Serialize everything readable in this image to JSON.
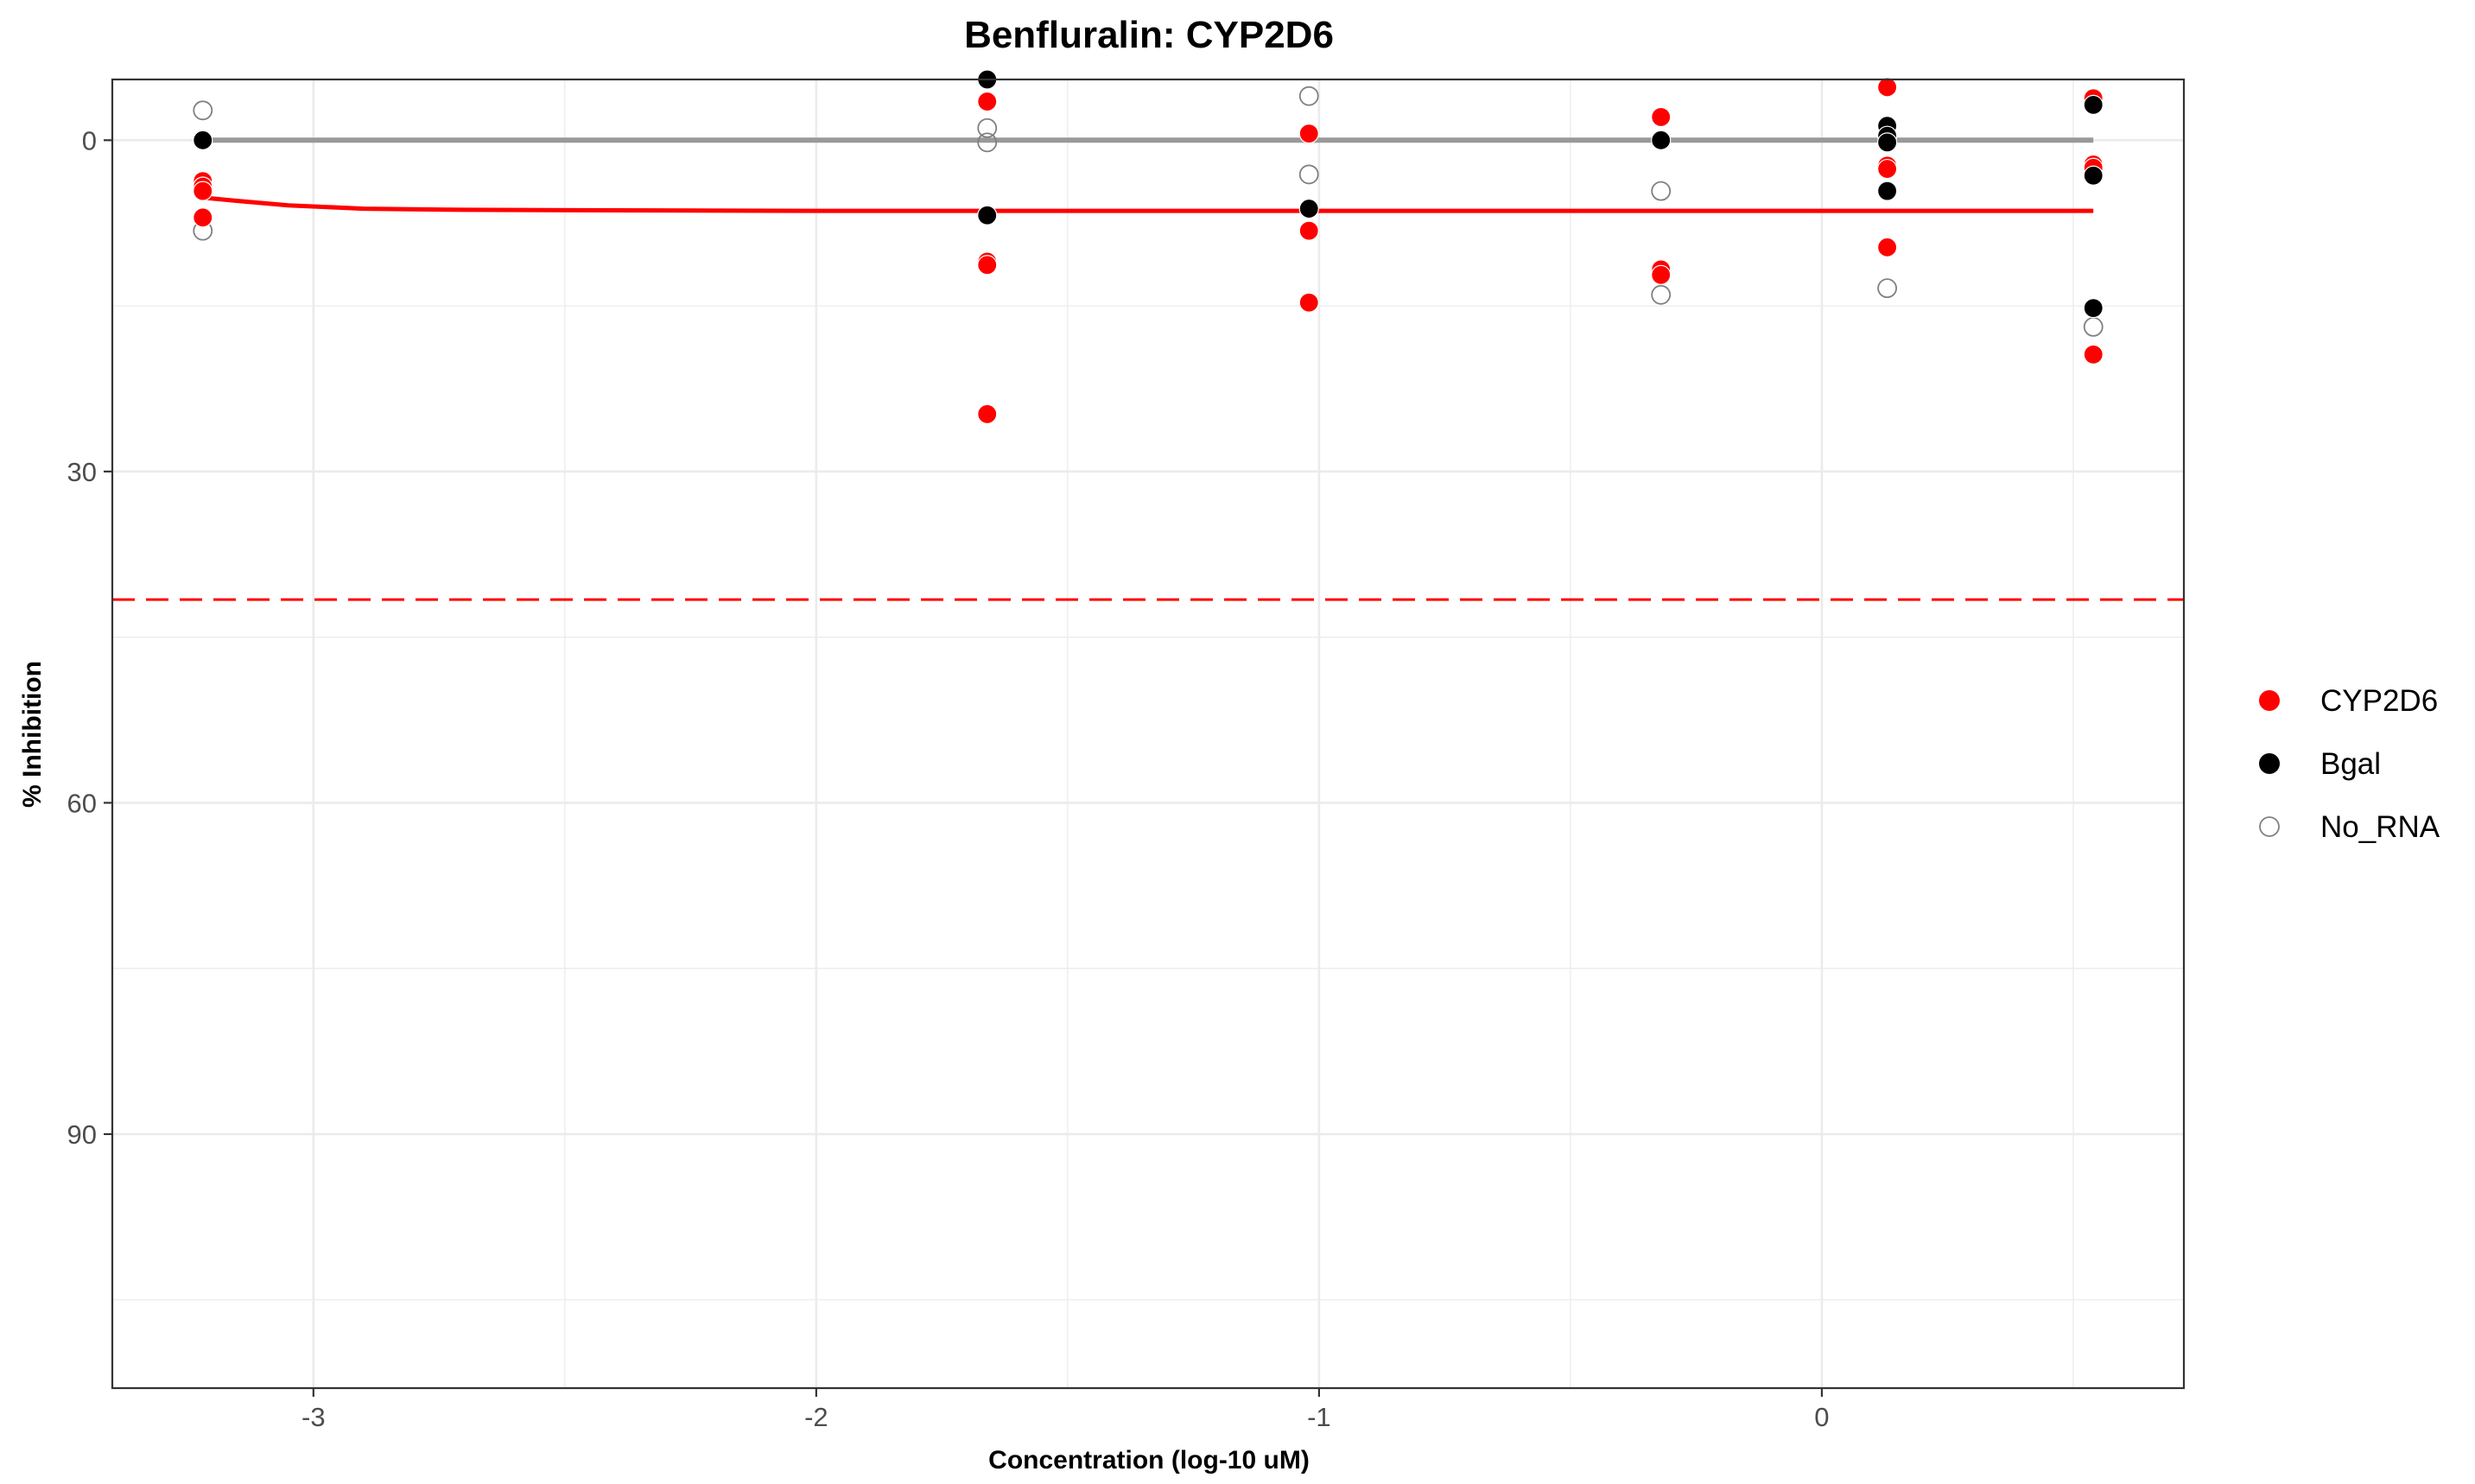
{
  "chart_data": {
    "type": "scatter",
    "title": "Benfluralin: CYP2D6",
    "xlabel": "Concentration (log-10 uM)",
    "ylabel": "% Inhibition",
    "xlim": [
      -3.4,
      0.72
    ],
    "ylim": [
      113,
      -5.5
    ],
    "y_reversed": true,
    "x_ticks": [
      -3,
      -2,
      -1,
      0
    ],
    "x_tick_labels": [
      "-3",
      "-2",
      "-1",
      "0"
    ],
    "y_ticks": [
      0,
      30,
      60,
      90
    ],
    "y_tick_labels": [
      "0",
      "30",
      "60",
      "90"
    ],
    "grid": true,
    "legend_position": "right",
    "colors": {
      "CYP2D6": "#ff0000",
      "Bgal": "#000000",
      "No_RNA": "#808080",
      "bgal_fit": "#999999"
    },
    "series": [
      {
        "name": "CYP2D6",
        "marker": "filled-circle",
        "color": "#ff0000",
        "points": [
          {
            "x": -3.22,
            "y": 3.7
          },
          {
            "x": -3.22,
            "y": 4.2
          },
          {
            "x": -3.22,
            "y": 4.6
          },
          {
            "x": -3.22,
            "y": 7.0
          },
          {
            "x": -1.66,
            "y": -3.5
          },
          {
            "x": -1.66,
            "y": 11.0
          },
          {
            "x": -1.66,
            "y": 11.3
          },
          {
            "x": -1.66,
            "y": 24.8
          },
          {
            "x": -1.02,
            "y": -0.6
          },
          {
            "x": -1.02,
            "y": 8.2
          },
          {
            "x": -1.02,
            "y": 14.7
          },
          {
            "x": -0.32,
            "y": -2.1
          },
          {
            "x": -0.32,
            "y": 11.7
          },
          {
            "x": -0.32,
            "y": 12.2
          },
          {
            "x": 0.13,
            "y": -4.8
          },
          {
            "x": 0.13,
            "y": 2.3
          },
          {
            "x": 0.13,
            "y": 2.6
          },
          {
            "x": 0.13,
            "y": 9.7
          },
          {
            "x": 0.54,
            "y": -3.8
          },
          {
            "x": 0.54,
            "y": 2.2
          },
          {
            "x": 0.54,
            "y": 2.5
          },
          {
            "x": 0.54,
            "y": 19.4
          }
        ]
      },
      {
        "name": "Bgal",
        "marker": "filled-circle",
        "color": "#000000",
        "points": [
          {
            "x": -3.22,
            "y": 0.0
          },
          {
            "x": -1.66,
            "y": -5.5
          },
          {
            "x": -1.66,
            "y": 6.8
          },
          {
            "x": -1.02,
            "y": 6.2
          },
          {
            "x": -0.32,
            "y": 0.0
          },
          {
            "x": 0.13,
            "y": -1.3
          },
          {
            "x": 0.13,
            "y": -0.4
          },
          {
            "x": 0.13,
            "y": 0.2
          },
          {
            "x": 0.13,
            "y": 4.6
          },
          {
            "x": 0.54,
            "y": -3.2
          },
          {
            "x": 0.54,
            "y": 3.2
          },
          {
            "x": 0.54,
            "y": 15.2
          }
        ]
      },
      {
        "name": "No_RNA",
        "marker": "open-circle",
        "color": "#808080",
        "points": [
          {
            "x": -3.22,
            "y": -2.7
          },
          {
            "x": -3.22,
            "y": 8.2
          },
          {
            "x": -1.66,
            "y": -1.1
          },
          {
            "x": -1.66,
            "y": 0.2
          },
          {
            "x": -1.66,
            "y": 11.0
          },
          {
            "x": -1.02,
            "y": -4.0
          },
          {
            "x": -1.02,
            "y": 3.1
          },
          {
            "x": -1.02,
            "y": 14.7
          },
          {
            "x": -0.32,
            "y": 4.6
          },
          {
            "x": -0.32,
            "y": 14.0
          },
          {
            "x": 0.13,
            "y": 13.4
          },
          {
            "x": 0.54,
            "y": 16.9
          }
        ]
      }
    ],
    "fit_lines": [
      {
        "name": "CYP2D6 fit",
        "color": "#ff0000",
        "width": 5,
        "x": [
          -3.22,
          -3.15,
          -3.05,
          -2.9,
          -2.7,
          -2.4,
          -2.0,
          -1.5,
          -1.0,
          0.0,
          0.54
        ],
        "y": [
          5.2,
          5.5,
          5.9,
          6.2,
          6.3,
          6.35,
          6.4,
          6.4,
          6.4,
          6.4,
          6.4
        ]
      },
      {
        "name": "Bgal fit",
        "color": "#999999",
        "width": 6,
        "x": [
          -3.22,
          0.54
        ],
        "y": [
          0.0,
          0.0
        ]
      }
    ],
    "threshold_line": {
      "y": 41.6,
      "color": "#ff0000",
      "style": "dashed"
    }
  }
}
